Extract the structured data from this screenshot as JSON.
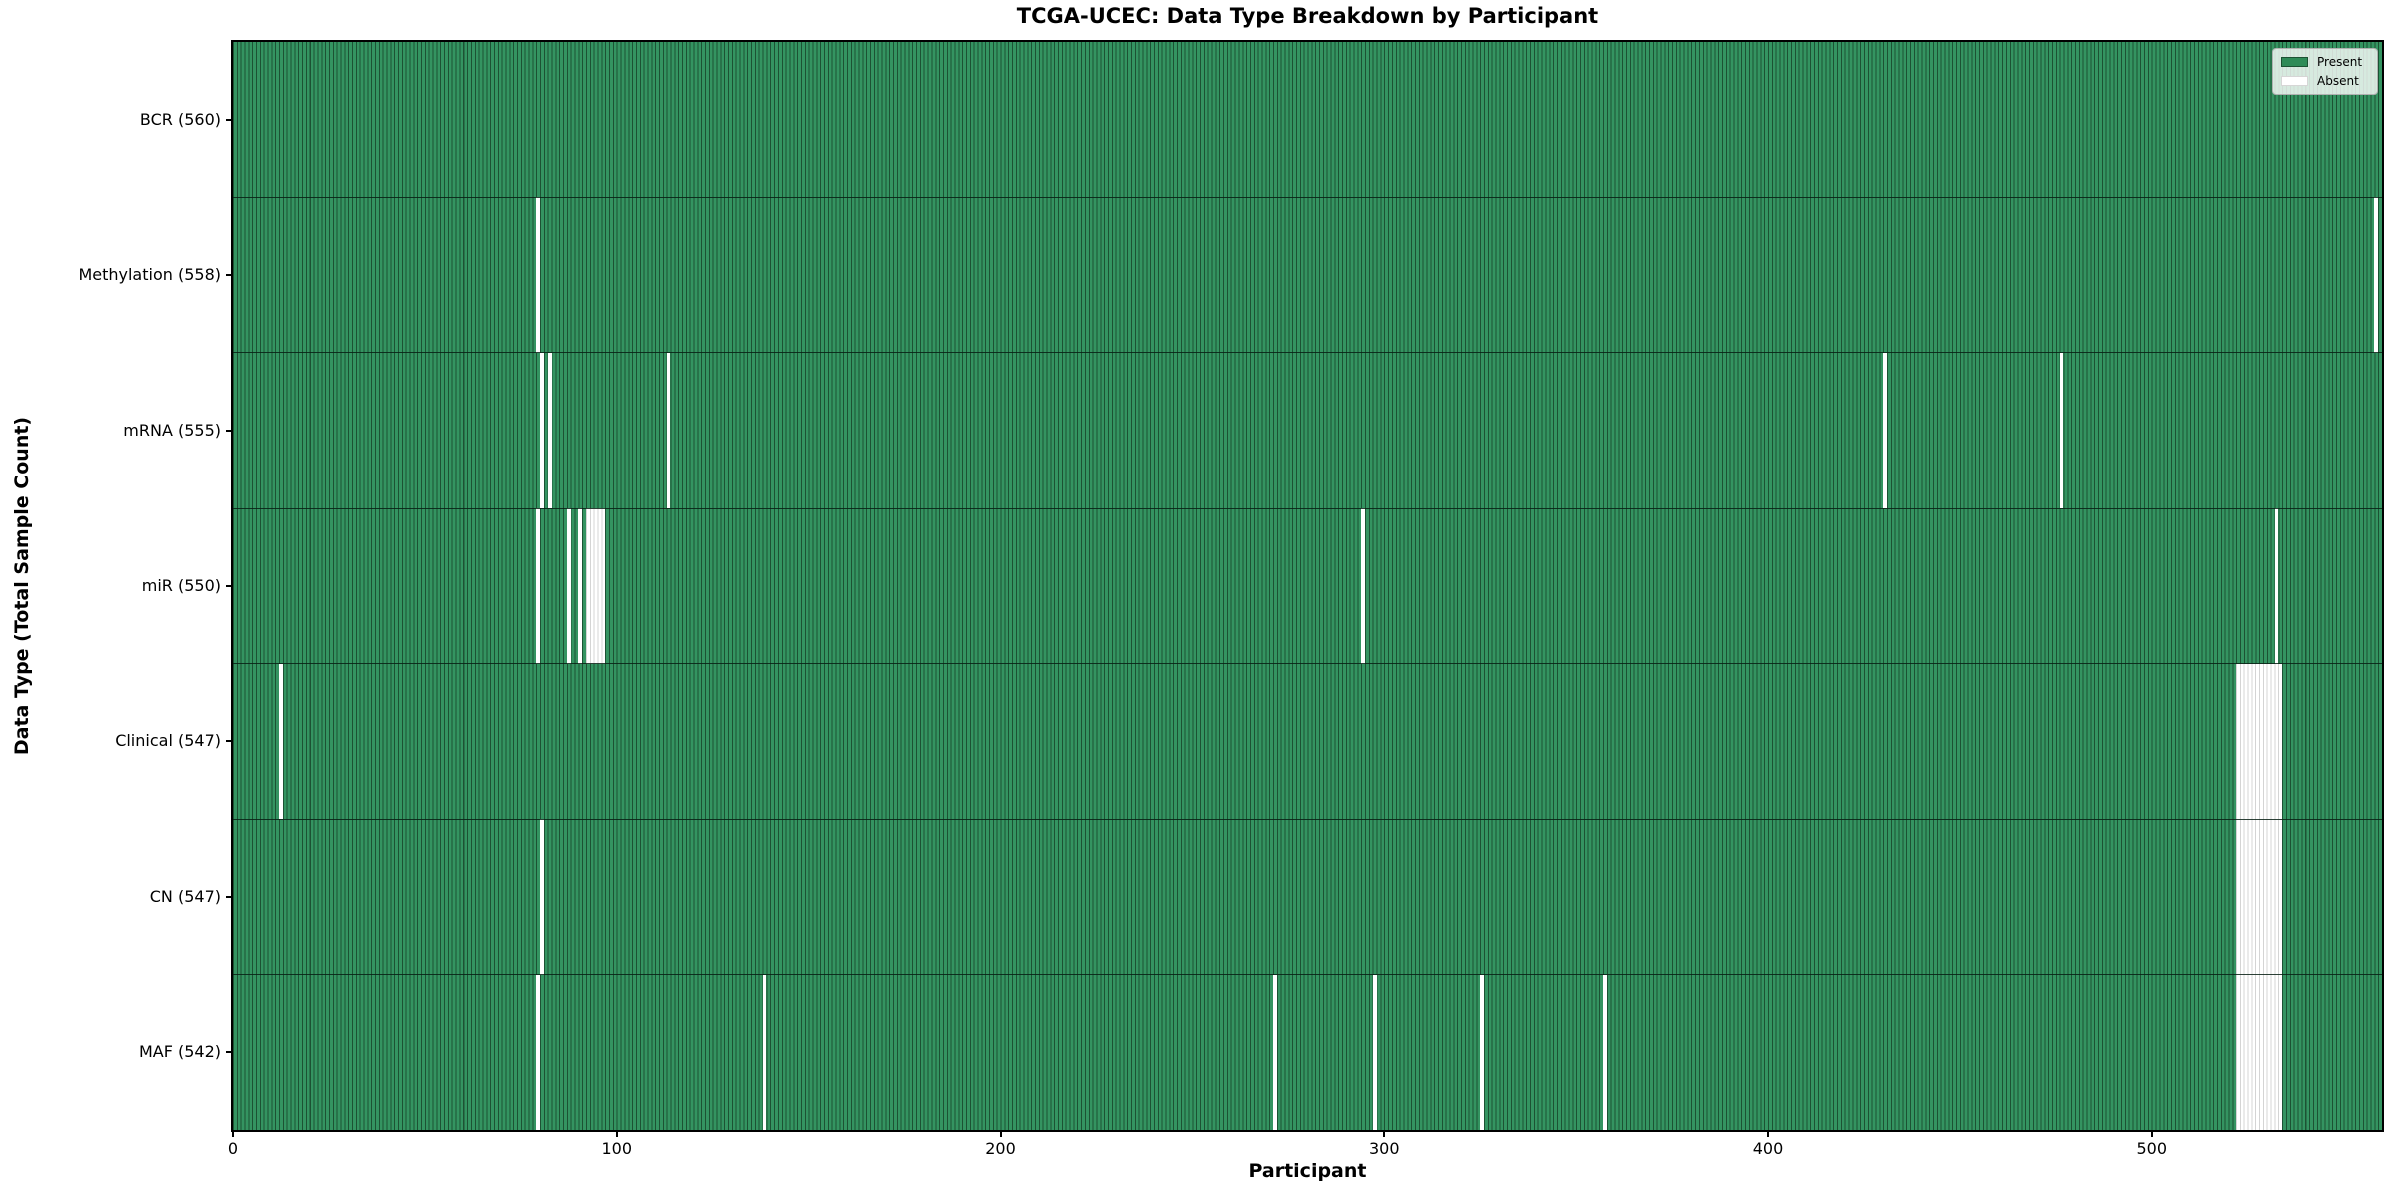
{
  "figure": {
    "title": "TCGA-UCEC: Data Type Breakdown by Participant",
    "xlabel": "Participant",
    "ylabel": "Data Type (Total Sample Count)"
  },
  "legend": {
    "items": [
      {
        "name": "present",
        "label": "Present",
        "color": "#2e8b57",
        "edge": "#1c5233"
      },
      {
        "name": "absent",
        "label": "Absent",
        "color": "#ffffff",
        "edge": "#d6d6d6"
      }
    ]
  },
  "chart_data": {
    "type": "heatmap",
    "title": "TCGA-UCEC: Data Type Breakdown by Participant",
    "xlabel": "Participant",
    "ylabel": "Data Type (Total Sample Count)",
    "x_ticks": [
      0,
      100,
      200,
      300,
      400,
      500
    ],
    "x_range": [
      0,
      560
    ],
    "n_participants": 560,
    "cell_values": {
      "present": 1,
      "absent": 0
    },
    "legend_position": "upper right",
    "grid": false,
    "rows": [
      {
        "name": "BCR",
        "label": "BCR (560)",
        "present_count": 560,
        "absent_participants": []
      },
      {
        "name": "Methylation",
        "label": "Methylation (558)",
        "present_count": 558,
        "absent_participants": [
          79,
          558
        ]
      },
      {
        "name": "mRNA",
        "label": "mRNA (555)",
        "present_count": 555,
        "absent_participants": [
          80,
          82,
          113,
          430,
          476
        ]
      },
      {
        "name": "miR",
        "label": "miR (550)",
        "present_count": 550,
        "absent_participants": [
          79,
          87,
          90,
          92,
          93,
          94,
          95,
          96,
          294,
          532
        ]
      },
      {
        "name": "Clinical",
        "label": "Clinical (547)",
        "present_count": 547,
        "absent_participants": [
          12,
          522,
          523,
          524,
          525,
          526,
          527,
          528,
          529,
          530,
          531,
          532,
          533
        ]
      },
      {
        "name": "CN",
        "label": "CN (547)",
        "present_count": 547,
        "absent_participants": [
          80,
          522,
          523,
          524,
          525,
          526,
          527,
          528,
          529,
          530,
          531,
          532,
          533
        ]
      },
      {
        "name": "MAF",
        "label": "MAF (542)",
        "present_count": 542,
        "absent_participants": [
          79,
          138,
          271,
          297,
          325,
          357,
          522,
          523,
          524,
          525,
          526,
          527,
          528,
          529,
          530,
          531,
          532,
          533
        ]
      }
    ],
    "colors": {
      "present_fill": "#349461",
      "bar_edge": "#1c5233",
      "absent_fill": "#ffffff",
      "absent_edge": "#d4d4d4",
      "row_divider": "rgba(8,32,20,0.85)",
      "spine": "#000000"
    }
  }
}
